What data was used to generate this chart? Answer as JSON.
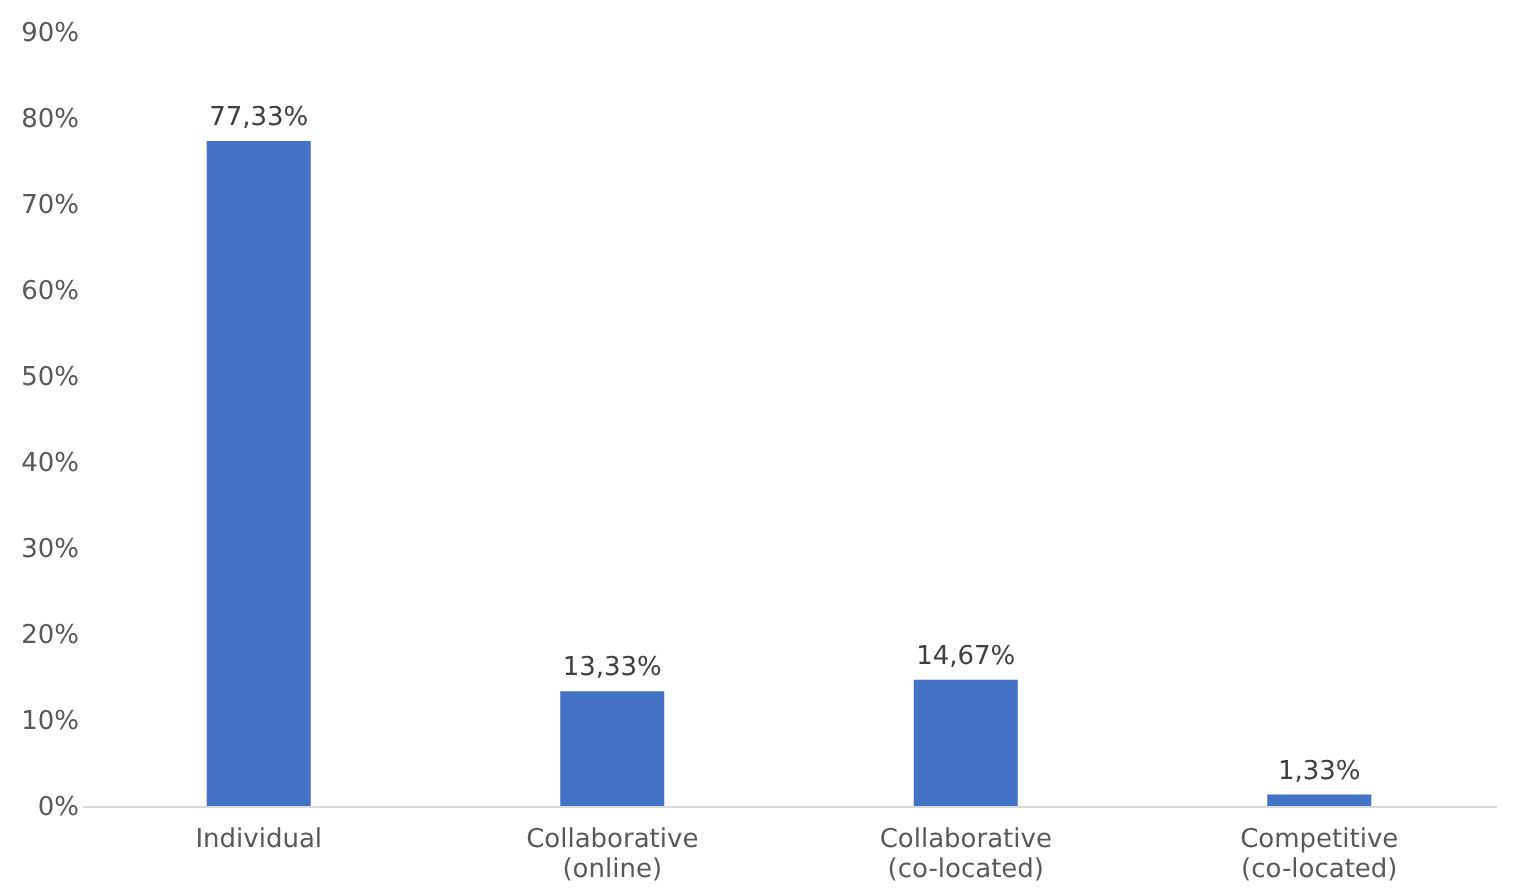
{
  "chart_data": {
    "type": "bar",
    "categories": [
      "Individual",
      "Collaborative (online)",
      "Collaborative (co-located)",
      "Competitive (co-located)"
    ],
    "values": [
      77.33,
      13.33,
      14.67,
      1.33
    ],
    "value_labels": [
      "77,33%",
      "13,33%",
      "14,67%",
      "1,33%"
    ],
    "color": "#4472c4",
    "ylim": [
      0,
      90
    ],
    "yticks": [
      {
        "value": 0,
        "label": "0%"
      },
      {
        "value": 10,
        "label": "10%"
      },
      {
        "value": 20,
        "label": "20%"
      },
      {
        "value": 30,
        "label": "30%"
      },
      {
        "value": 40,
        "label": "40%"
      },
      {
        "value": 50,
        "label": "50%"
      },
      {
        "value": 60,
        "label": "60%"
      },
      {
        "value": 70,
        "label": "70%"
      },
      {
        "value": 80,
        "label": "80%"
      },
      {
        "value": 90,
        "label": "90%"
      }
    ],
    "grid": false
  }
}
